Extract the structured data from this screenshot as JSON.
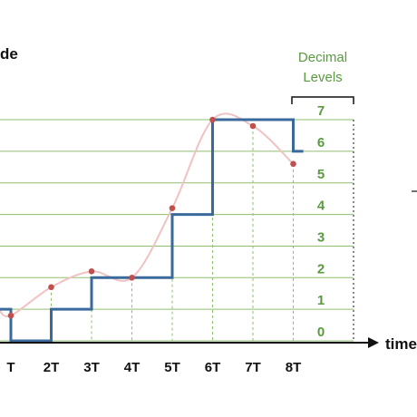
{
  "title_fragment": "de",
  "x_axis_fragment": "time",
  "legend": {
    "line1": "Decimal",
    "line2": "Levels"
  },
  "levels": [
    "0",
    "1",
    "2",
    "3",
    "4",
    "5",
    "6",
    "7"
  ],
  "time_ticks": [
    "T",
    "2T",
    "3T",
    "4T",
    "5T",
    "6T",
    "7T",
    "8T"
  ],
  "samples": [
    {
      "t": 1,
      "value": 0.8
    },
    {
      "t": 2,
      "value": 1.7
    },
    {
      "t": 3,
      "value": 2.2
    },
    {
      "t": 4,
      "value": 2.0
    },
    {
      "t": 5,
      "value": 4.2
    },
    {
      "t": 6,
      "value": 7.0
    },
    {
      "t": 7,
      "value": 6.8
    },
    {
      "t": 8,
      "value": 5.6
    }
  ],
  "quantized_steps": [
    {
      "from": 0,
      "to": 1,
      "level": 1
    },
    {
      "from": 1,
      "to": 2,
      "level": 0
    },
    {
      "from": 2,
      "to": 3,
      "level": 1
    },
    {
      "from": 3,
      "to": 5,
      "level": 2
    },
    {
      "from": 5,
      "to": 6,
      "level": 4
    },
    {
      "from": 6,
      "to": 8,
      "level": 7
    },
    {
      "from": 8,
      "to": 8.25,
      "level": 6
    }
  ],
  "colors": {
    "grid": "#8fbf6e",
    "level_text": "#5a9a40",
    "step": "#3a6a9c",
    "sample": "#c0504d",
    "curve": "#f0c2c2",
    "axis": "#111111"
  }
}
